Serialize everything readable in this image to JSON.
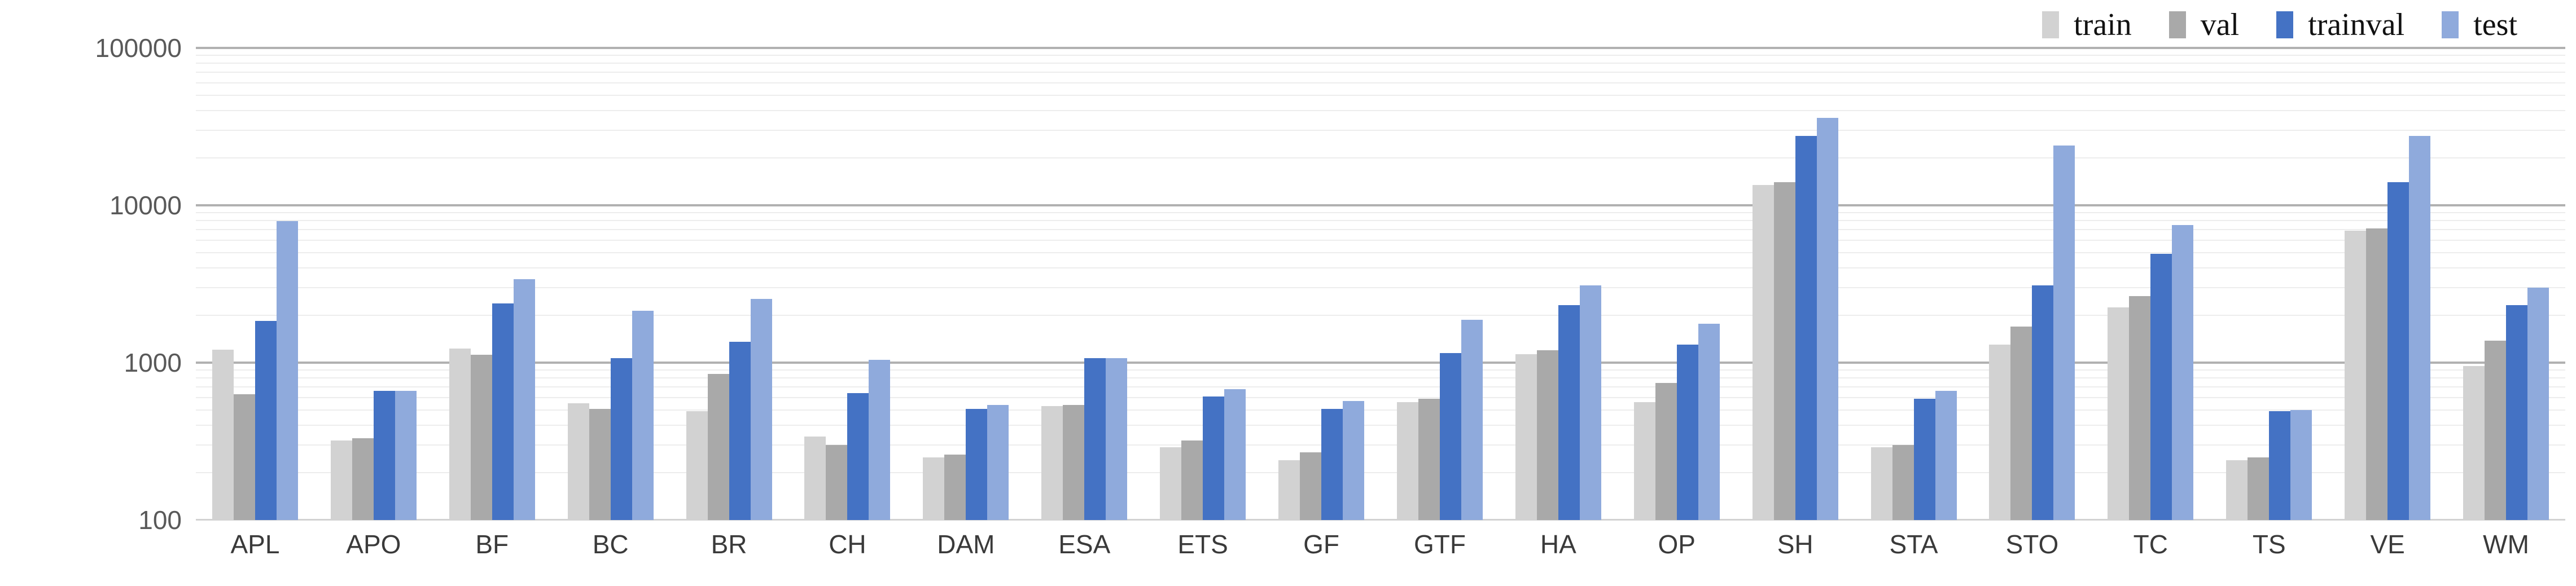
{
  "chart_data": {
    "type": "bar",
    "title": "",
    "xlabel": "",
    "ylabel": "",
    "y_axis": {
      "scale": "log10",
      "min": 100,
      "max": 100000,
      "tick_labels": [
        "100",
        "1000",
        "10000",
        "100000"
      ],
      "tick_values": [
        100,
        1000,
        10000,
        100000
      ]
    },
    "grid": "major horizontal + minor log horizontal",
    "legend_position": "top-right",
    "legend_labels": [
      "train",
      "val",
      "trainval",
      "test"
    ],
    "categories": [
      "APL",
      "APO",
      "BF",
      "BC",
      "BR",
      "CH",
      "DAM",
      "ESA",
      "ETS",
      "GF",
      "GTF",
      "HA",
      "OP",
      "SH",
      "STA",
      "STO",
      "TC",
      "TS",
      "VE",
      "WM"
    ],
    "series": [
      {
        "name": "train",
        "color": "#d2d2d2",
        "values": [
          1210,
          320,
          1230,
          550,
          490,
          340,
          250,
          530,
          290,
          240,
          560,
          1130,
          560,
          13500,
          290,
          1300,
          2250,
          240,
          6900,
          950
        ]
      },
      {
        "name": "val",
        "color": "#a9a9a9",
        "values": [
          630,
          330,
          1120,
          510,
          850,
          300,
          260,
          540,
          320,
          270,
          590,
          1200,
          740,
          14000,
          300,
          1700,
          2650,
          250,
          7100,
          1380
        ]
      },
      {
        "name": "trainval",
        "color": "#4472c4",
        "values": [
          1840,
          660,
          2370,
          1070,
          1360,
          640,
          510,
          1070,
          610,
          510,
          1150,
          2330,
          1300,
          27500,
          590,
          3100,
          4900,
          490,
          14000,
          2330
        ]
      },
      {
        "name": "test",
        "color": "#8faadc",
        "values": [
          7950,
          660,
          3380,
          2130,
          2540,
          1040,
          540,
          1070,
          680,
          570,
          1870,
          3100,
          1770,
          36000,
          660,
          24000,
          7500,
          500,
          27500,
          3000
        ]
      }
    ],
    "colors": {
      "major_gridline": "#b1b1b1",
      "minor_gridline": "#ededed",
      "baseline": "#d2d2d2",
      "y_tick_text": "#595959",
      "x_tick_text": "#3a3a3a",
      "legend_text": "#111111",
      "background": "#ffffff"
    }
  }
}
